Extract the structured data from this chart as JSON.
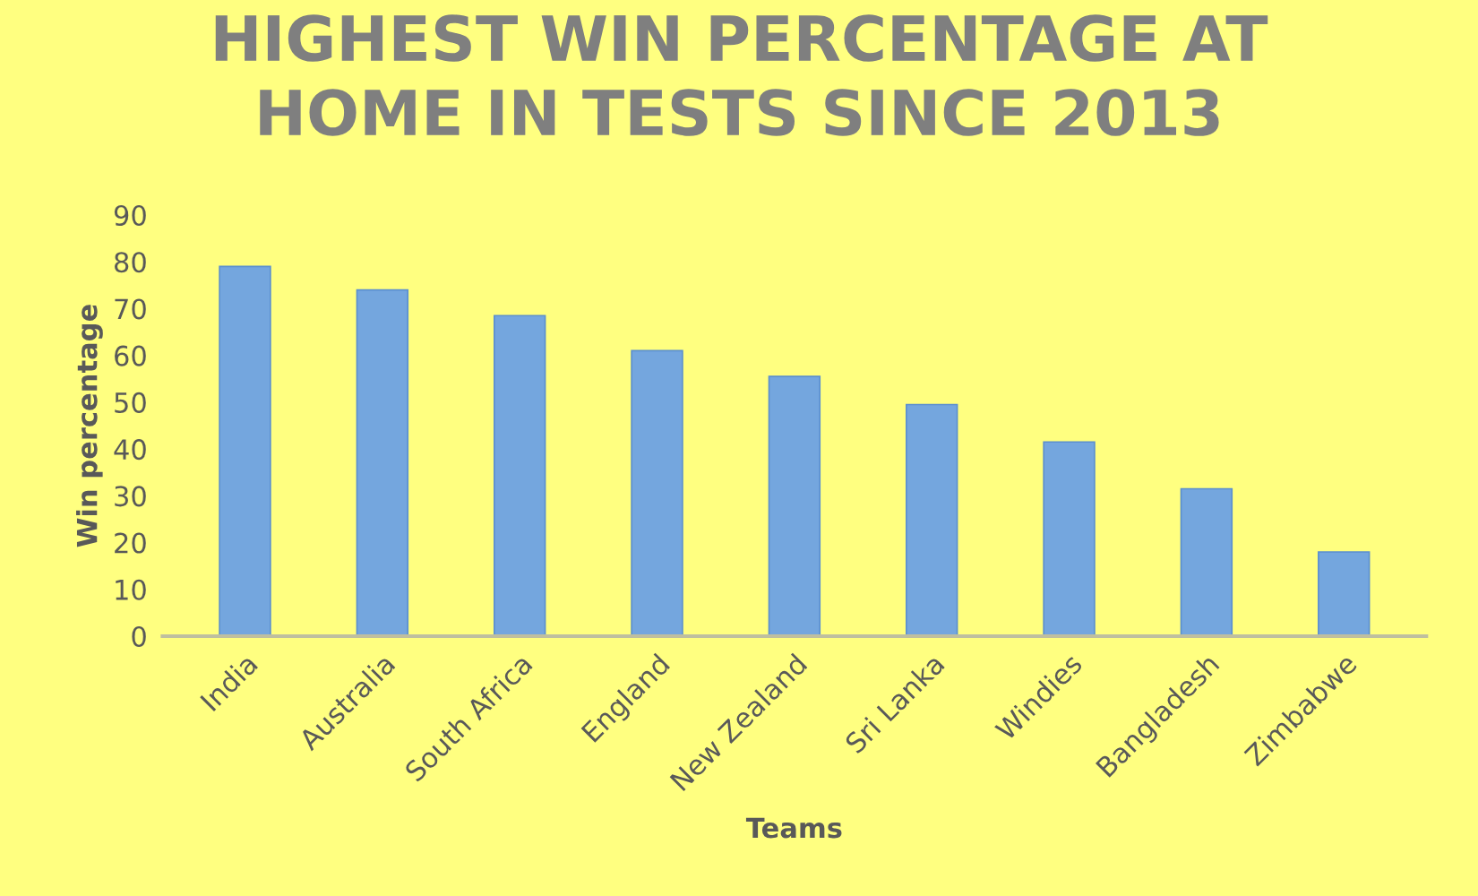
{
  "chart_data": {
    "type": "bar",
    "title": "HIGHEST WIN PERCENTAGE AT\nHOME IN TESTS SINCE 2013",
    "xlabel": "Teams",
    "ylabel": "Win percentage",
    "categories": [
      "India",
      "Australia",
      "South Africa",
      "England",
      "New Zealand",
      "Sri Lanka",
      "Windies",
      "Bangladesh",
      "Zimbabwe"
    ],
    "values": [
      79,
      74,
      68.5,
      61,
      55.5,
      49.5,
      41.5,
      31.5,
      18
    ],
    "color": "#74a6de",
    "ylim": [
      0,
      90
    ],
    "yticks": [
      0,
      10,
      20,
      30,
      40,
      50,
      60,
      70,
      80,
      90
    ],
    "grid": false,
    "legend": false
  }
}
